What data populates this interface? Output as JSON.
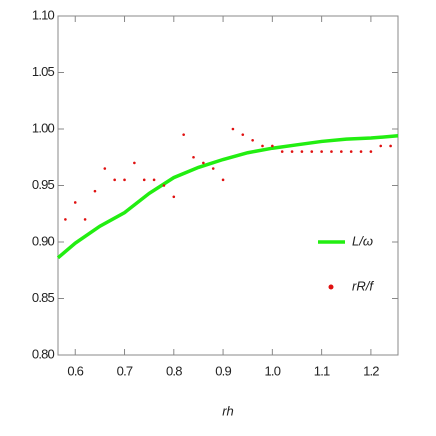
{
  "chart_data": {
    "type": "line",
    "x_label": "rh",
    "xlim": [
      0.565,
      1.255
    ],
    "ylim": [
      0.8,
      1.1
    ],
    "xticks": [
      0.6,
      0.7,
      0.8,
      0.9,
      {
        "value": 1.0,
        "label": "1.0"
      },
      1.1,
      1.2
    ],
    "yticks": [
      {
        "value": 0.8,
        "label": "0.80"
      },
      0.85,
      {
        "value": 0.9,
        "label": "0.90"
      },
      0.95,
      {
        "value": 1.0,
        "label": "1.00"
      },
      1.05,
      {
        "value": 1.1,
        "label": "1.10"
      }
    ],
    "legend": "right",
    "series": [
      {
        "name": "L/ω",
        "color": "#22ee11",
        "style": "line",
        "x": [
          0.565,
          0.6,
          0.65,
          0.7,
          0.75,
          0.8,
          0.85,
          0.9,
          0.95,
          1.0,
          1.05,
          1.1,
          1.15,
          1.2,
          1.255
        ],
        "values": [
          0.886,
          0.899,
          0.914,
          0.926,
          0.943,
          0.957,
          0.966,
          0.973,
          0.979,
          0.983,
          0.986,
          0.989,
          0.991,
          0.992,
          0.994
        ]
      },
      {
        "name": "rR/f",
        "color": "#e01010",
        "style": "points",
        "x": [
          0.58,
          0.6,
          0.62,
          0.64,
          0.66,
          0.68,
          0.7,
          0.72,
          0.74,
          0.76,
          0.78,
          0.8,
          0.82,
          0.84,
          0.86,
          0.88,
          0.9,
          0.92,
          0.94,
          0.96,
          0.98,
          1.0,
          1.02,
          1.04,
          1.06,
          1.08,
          1.1,
          1.12,
          1.14,
          1.16,
          1.18,
          1.2,
          1.22,
          1.24
        ],
        "values": [
          0.92,
          0.935,
          0.92,
          0.945,
          0.965,
          0.955,
          0.955,
          0.97,
          0.955,
          0.955,
          0.95,
          0.94,
          0.995,
          0.975,
          0.97,
          0.965,
          0.955,
          1.0,
          0.995,
          0.99,
          0.985,
          0.985,
          0.98,
          0.98,
          0.98,
          0.98,
          0.98,
          0.98,
          0.98,
          0.98,
          0.98,
          0.98,
          0.985,
          0.985
        ]
      }
    ]
  }
}
